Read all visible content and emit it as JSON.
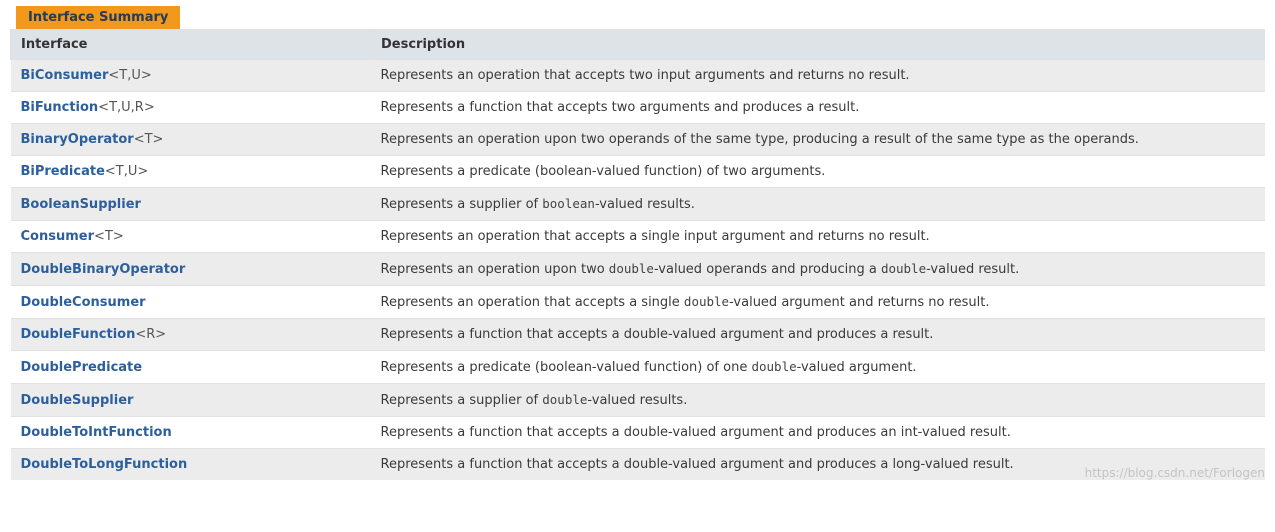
{
  "colors": {
    "caption_bg": "#f1981d",
    "caption_fg": "#253b56",
    "header_bg": "#dee3e8",
    "row_alt_bg": "#ececec",
    "link": "#2c5f9c",
    "border": "#e0e0e0",
    "desc_text": "#3a3a3a"
  },
  "section": {
    "caption": "Interface Summary"
  },
  "columns": {
    "interface": "Interface",
    "description": "Description"
  },
  "rows": [
    {
      "name": "BiConsumer",
      "params": "<T,U>",
      "desc_plain": "Represents an operation that accepts two input arguments and returns no result.",
      "desc_html": "Represents an operation that accepts two input arguments and returns no result."
    },
    {
      "name": "BiFunction",
      "params": "<T,U,R>",
      "desc_plain": "Represents a function that accepts two arguments and produces a result.",
      "desc_html": "Represents a function that accepts two arguments and produces a result."
    },
    {
      "name": "BinaryOperator",
      "params": "<T>",
      "desc_plain": "Represents an operation upon two operands of the same type, producing a result of the same type as the operands.",
      "desc_html": "Represents an operation upon two operands of the same type, producing a result of the same type as the operands."
    },
    {
      "name": "BiPredicate",
      "params": "<T,U>",
      "desc_plain": "Represents a predicate (boolean-valued function) of two arguments.",
      "desc_html": "Represents a predicate (boolean-valued function) of two arguments."
    },
    {
      "name": "BooleanSupplier",
      "params": "",
      "desc_plain": "Represents a supplier of boolean-valued results.",
      "desc_html": "Represents a supplier of <code class=\"mono\">boolean</code>-valued results."
    },
    {
      "name": "Consumer",
      "params": "<T>",
      "desc_plain": "Represents an operation that accepts a single input argument and returns no result.",
      "desc_html": "Represents an operation that accepts a single input argument and returns no result."
    },
    {
      "name": "DoubleBinaryOperator",
      "params": "",
      "desc_plain": "Represents an operation upon two double-valued operands and producing a double-valued result.",
      "desc_html": "Represents an operation upon two <code class=\"mono\">double</code>-valued operands and producing a <code class=\"mono\">double</code>-valued result."
    },
    {
      "name": "DoubleConsumer",
      "params": "",
      "desc_plain": "Represents an operation that accepts a single double-valued argument and returns no result.",
      "desc_html": "Represents an operation that accepts a single <code class=\"mono\">double</code>-valued argument and returns no result."
    },
    {
      "name": "DoubleFunction",
      "params": "<R>",
      "desc_plain": "Represents a function that accepts a double-valued argument and produces a result.",
      "desc_html": "Represents a function that accepts a double-valued argument and produces a result."
    },
    {
      "name": "DoublePredicate",
      "params": "",
      "desc_plain": "Represents a predicate (boolean-valued function) of one double-valued argument.",
      "desc_html": "Represents a predicate (boolean-valued function) of one <code class=\"mono\">double</code>-valued argument."
    },
    {
      "name": "DoubleSupplier",
      "params": "",
      "desc_plain": "Represents a supplier of double-valued results.",
      "desc_html": "Represents a supplier of <code class=\"mono\">double</code>-valued results."
    },
    {
      "name": "DoubleToIntFunction",
      "params": "",
      "desc_plain": "Represents a function that accepts a double-valued argument and produces an int-valued result.",
      "desc_html": "Represents a function that accepts a double-valued argument and produces an int-valued result."
    },
    {
      "name": "DoubleToLongFunction",
      "params": "",
      "desc_plain": "Represents a function that accepts a double-valued argument and produces a long-valued result.",
      "desc_html": "Represents a function that accepts a double-valued argument and produces a long-valued result."
    }
  ],
  "watermark": "https://blog.csdn.net/Forlogen"
}
